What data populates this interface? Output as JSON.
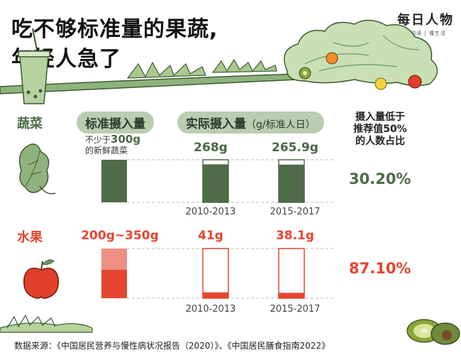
{
  "title_line1": "吃不够标准量的果蔬,",
  "title_line2": "年轻人急了",
  "logo": {
    "main": "每日人物",
    "sub": "轻阅读 | 懂生活"
  },
  "headers": {
    "standard": "标准摄入量",
    "actual": "实际摄入量",
    "actual_unit": "（g/标准人日）",
    "below_line1": "摄入量低于",
    "below_line2": "推荐值50%",
    "below_line3": "的人数占比"
  },
  "vegetables": {
    "label": "蔬菜",
    "standard_prefix": "不少于",
    "standard_value": "300g",
    "standard_suffix": "的新鲜蔬菜",
    "actual_labels": [
      "268g",
      "265.9g"
    ],
    "percent": "30.20%"
  },
  "fruits": {
    "label": "水果",
    "standard": "200g~350g",
    "actual_labels": [
      "41g",
      "38.1g"
    ],
    "percent": "87.10%"
  },
  "periods": [
    "2010-2013",
    "2015-2017"
  ],
  "source": "数据来源：《中国居民营养与慢性病状况报告（2020）》、《中国居民膳食指南2022》",
  "colors": {
    "veg": "#4f6b48",
    "fruit": "#e5452f",
    "fruit_light": "#ee8f83",
    "pill": "#b9cdb1"
  },
  "chart_data": {
    "type": "bar",
    "unit": "g/标准人日",
    "categories": [
      "标准摄入量",
      "2010-2013",
      "2015-2017"
    ],
    "series": [
      {
        "name": "蔬菜",
        "values": [
          300,
          268,
          265.9
        ]
      },
      {
        "name": "水果",
        "values": [
          [
            200,
            350
          ],
          41,
          38.1
        ]
      }
    ],
    "share_below_half_recommended": {
      "蔬菜": 30.2,
      "水果": 87.1
    }
  }
}
